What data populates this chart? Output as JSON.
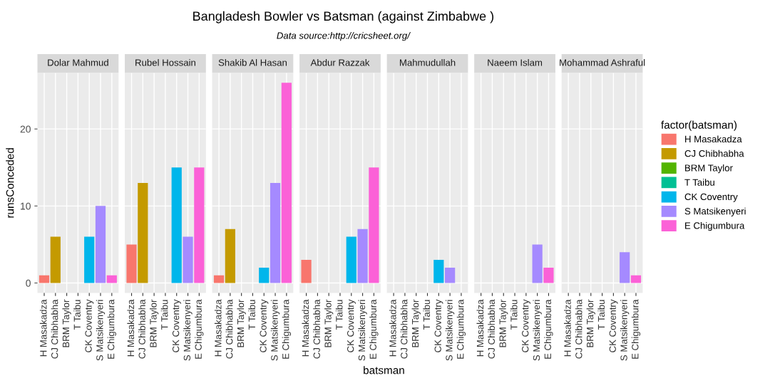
{
  "chart_data": [
    {
      "type": "bar",
      "title": "Dolar Mahmud",
      "annotations": [
        "Bangladesh Bowler vs Batsman (against Zimbabwe )",
        "Data source:http://cricsheet.org/"
      ],
      "ylabel": "runsConceded",
      "categories": [
        "H Masakadza",
        "CJ Chibhabha",
        "BRM Taylor",
        "T Taibu",
        "CK Coventry",
        "S Matsikenyeri",
        "E Chigumbura"
      ],
      "values": [
        1,
        6,
        null,
        null,
        6,
        10,
        1
      ],
      "colors": [
        "#f8766d",
        "#c49a00",
        "#53b400",
        "#00c094",
        "#00b6eb",
        "#a58aff",
        "#fb61d7"
      ],
      "ylim": [
        -1.3,
        27.3
      ],
      "yticks": [
        0,
        10,
        20
      ],
      "grid": true
    },
    {
      "type": "bar",
      "title": "Rubel Hossain",
      "categories": [
        "H Masakadza",
        "CJ Chibhabha",
        "BRM Taylor",
        "T Taibu",
        "CK Coventry",
        "S Matsikenyeri",
        "E Chigumbura"
      ],
      "values": [
        5,
        13,
        null,
        null,
        15,
        6,
        15
      ],
      "colors": [
        "#f8766d",
        "#c49a00",
        "#53b400",
        "#00c094",
        "#00b6eb",
        "#a58aff",
        "#fb61d7"
      ],
      "ylim": [
        -1.3,
        27.3
      ],
      "yticks": [
        0,
        10,
        20
      ],
      "grid": true,
      "tick_labels": "x"
    },
    {
      "type": "bar",
      "title": "Shakib Al Hasan",
      "categories": [
        "H Masakadza",
        "CJ Chibhabha",
        "BRM Taylor",
        "T Taibu",
        "CK Coventry",
        "S Matsikenyeri",
        "E Chigumbura"
      ],
      "values": [
        1,
        7,
        null,
        null,
        2,
        13,
        26
      ],
      "colors": [
        "#f8766d",
        "#c49a00",
        "#53b400",
        "#00c094",
        "#00b6eb",
        "#a58aff",
        "#fb61d7"
      ],
      "ylim": [
        -1.3,
        27.3
      ],
      "yticks": [
        0,
        10,
        20
      ],
      "grid": true,
      "tick_labels": "x"
    },
    {
      "type": "bar",
      "title": "Abdur Razzak",
      "xlabel": "batsman",
      "categories": [
        "H Masakadza",
        "CJ Chibhabha",
        "BRM Taylor",
        "T Taibu",
        "CK Coventry",
        "S Matsikenyeri",
        "E Chigumbura"
      ],
      "values": [
        3,
        null,
        null,
        null,
        6,
        7,
        15
      ],
      "colors": [
        "#f8766d",
        "#c49a00",
        "#53b400",
        "#00c094",
        "#00b6eb",
        "#a58aff",
        "#fb61d7"
      ],
      "ylim": [
        -1.3,
        27.3
      ],
      "yticks": [
        0,
        10,
        20
      ],
      "grid": true,
      "tick_labels": "x"
    },
    {
      "type": "bar",
      "title": "Mahmudullah",
      "categories": [
        "H Masakadza",
        "CJ Chibhabha",
        "BRM Taylor",
        "T Taibu",
        "CK Coventry",
        "S Matsikenyeri",
        "E Chigumbura"
      ],
      "values": [
        null,
        null,
        null,
        null,
        3,
        2,
        null
      ],
      "colors": [
        "#f8766d",
        "#c49a00",
        "#53b400",
        "#00c094",
        "#00b6eb",
        "#a58aff",
        "#fb61d7"
      ],
      "ylim": [
        -1.3,
        27.3
      ],
      "yticks": [
        0,
        10,
        20
      ],
      "grid": true,
      "tick_labels": "x"
    },
    {
      "type": "bar",
      "title": "Naeem Islam",
      "categories": [
        "H Masakadza",
        "CJ Chibhabha",
        "BRM Taylor",
        "T Taibu",
        "CK Coventry",
        "S Matsikenyeri",
        "E Chigumbura"
      ],
      "values": [
        null,
        null,
        null,
        null,
        null,
        5,
        2
      ],
      "colors": [
        "#f8766d",
        "#c49a00",
        "#53b400",
        "#00c094",
        "#00b6eb",
        "#a58aff",
        "#fb61d7"
      ],
      "ylim": [
        -1.3,
        27.3
      ],
      "yticks": [
        0,
        10,
        20
      ],
      "grid": true,
      "tick_labels": "x"
    },
    {
      "type": "bar",
      "title": "Mohammad Ashraful",
      "legend_title": "factor(batsman)",
      "legend": "right",
      "categories": [
        "H Masakadza",
        "CJ Chibhabha",
        "BRM Taylor",
        "T Taibu",
        "CK Coventry",
        "S Matsikenyeri",
        "E Chigumbura"
      ],
      "ylim": [
        -1.3,
        27.3
      ],
      "yticks": [
        0,
        10,
        20
      ],
      "grid": true,
      "tick_labels": "x",
      "series": [
        {
          "name": "H Masakadza",
          "color": "#f8766d",
          "values": [
            null,
            null,
            null,
            null,
            null,
            null,
            null
          ]
        },
        {
          "name": "CJ Chibhabha",
          "color": "#c49a00",
          "values": [
            null,
            null,
            null,
            null,
            null,
            null,
            null
          ]
        },
        {
          "name": "BRM Taylor",
          "color": "#53b400",
          "values": [
            null,
            null,
            null,
            null,
            null,
            null,
            null
          ]
        },
        {
          "name": "T Taibu",
          "color": "#00c094",
          "values": [
            null,
            null,
            null,
            null,
            null,
            null,
            null
          ]
        },
        {
          "name": "CK Coventry",
          "color": "#00b6eb",
          "values": [
            null,
            null,
            null,
            null,
            null,
            null,
            null
          ]
        },
        {
          "name": "S Matsikenyeri",
          "color": "#a58aff",
          "values": [
            null,
            null,
            null,
            null,
            null,
            4,
            null
          ]
        },
        {
          "name": "E Chigumbura",
          "color": "#fb61d7",
          "values": [
            null,
            null,
            null,
            null,
            null,
            null,
            1
          ]
        }
      ]
    }
  ]
}
